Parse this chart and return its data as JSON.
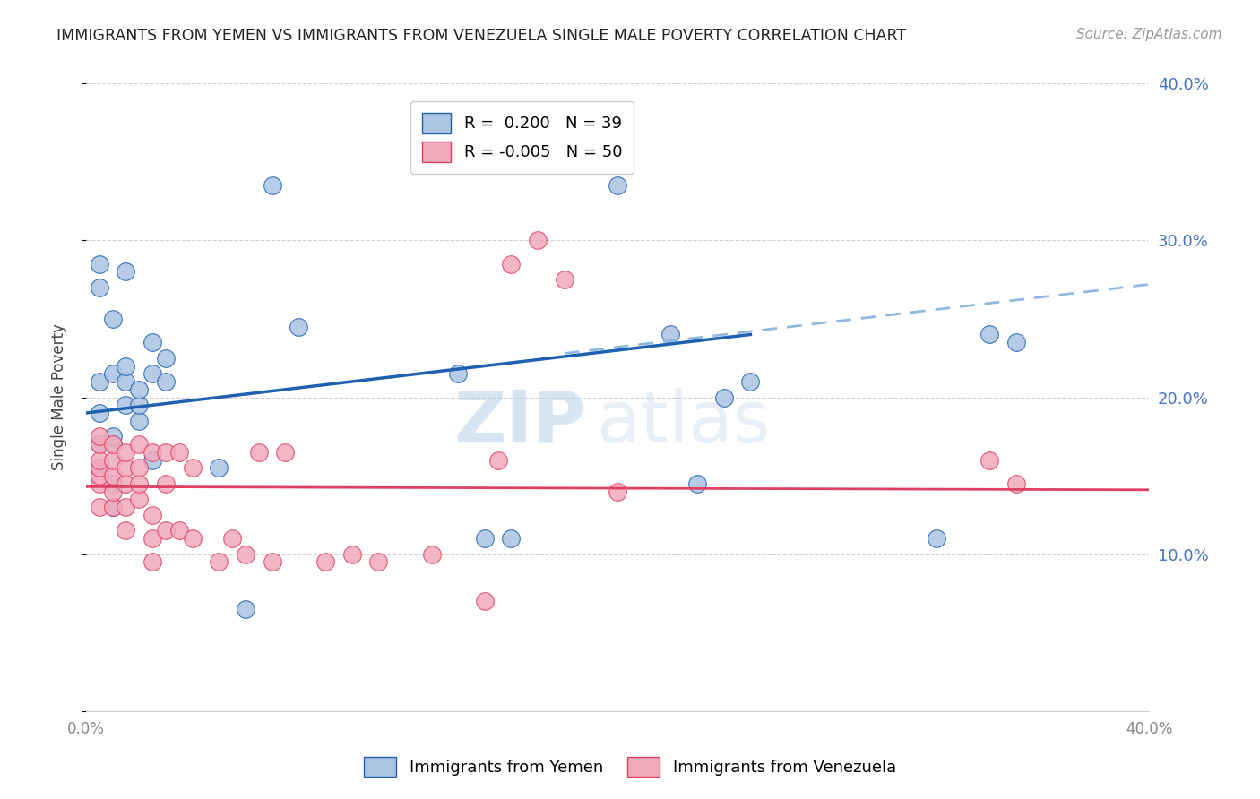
{
  "title": "IMMIGRANTS FROM YEMEN VS IMMIGRANTS FROM VENEZUELA SINGLE MALE POVERTY CORRELATION CHART",
  "source": "Source: ZipAtlas.com",
  "ylabel": "Single Male Poverty",
  "xlim": [
    0.0,
    0.4
  ],
  "ylim": [
    0.0,
    0.4
  ],
  "yticks": [
    0.0,
    0.1,
    0.2,
    0.3,
    0.4
  ],
  "ytick_labels": [
    "",
    "10.0%",
    "20.0%",
    "30.0%",
    "40.0%"
  ],
  "legend_r_yemen": "R =  0.200",
  "legend_n_yemen": "N = 39",
  "legend_r_venezuela": "R = -0.005",
  "legend_n_venezuela": "N = 50",
  "yemen_color": "#aac4e2",
  "venezuela_color": "#f2aabe",
  "yemen_line_color": "#2060b0",
  "venezuela_line_color": "#e04060",
  "dashed_line_color": "#90b8e0",
  "watermark_zip": "ZIP",
  "watermark_atlas": "atlas",
  "background_color": "#ffffff",
  "grid_color": "#d0d0d0",
  "yemen_x": [
    0.005,
    0.005,
    0.005,
    0.005,
    0.005,
    0.005,
    0.01,
    0.01,
    0.01,
    0.01,
    0.01,
    0.01,
    0.015,
    0.015,
    0.015,
    0.015,
    0.02,
    0.02,
    0.02,
    0.025,
    0.025,
    0.025,
    0.03,
    0.03,
    0.05,
    0.06,
    0.07,
    0.08,
    0.14,
    0.15,
    0.16,
    0.2,
    0.22,
    0.23,
    0.24,
    0.25,
    0.32,
    0.34,
    0.35
  ],
  "yemen_y": [
    0.155,
    0.17,
    0.19,
    0.21,
    0.27,
    0.285,
    0.13,
    0.145,
    0.17,
    0.175,
    0.215,
    0.25,
    0.195,
    0.21,
    0.22,
    0.28,
    0.185,
    0.195,
    0.205,
    0.16,
    0.215,
    0.235,
    0.21,
    0.225,
    0.155,
    0.065,
    0.335,
    0.245,
    0.215,
    0.11,
    0.11,
    0.335,
    0.24,
    0.145,
    0.2,
    0.21,
    0.11,
    0.24,
    0.235
  ],
  "venezuela_x": [
    0.005,
    0.005,
    0.005,
    0.005,
    0.005,
    0.005,
    0.005,
    0.01,
    0.01,
    0.01,
    0.01,
    0.01,
    0.015,
    0.015,
    0.015,
    0.015,
    0.015,
    0.02,
    0.02,
    0.02,
    0.02,
    0.025,
    0.025,
    0.025,
    0.025,
    0.03,
    0.03,
    0.03,
    0.035,
    0.035,
    0.04,
    0.04,
    0.05,
    0.055,
    0.06,
    0.065,
    0.07,
    0.075,
    0.09,
    0.1,
    0.11,
    0.13,
    0.15,
    0.155,
    0.16,
    0.17,
    0.18,
    0.2,
    0.34,
    0.35
  ],
  "venezuela_y": [
    0.13,
    0.145,
    0.15,
    0.155,
    0.16,
    0.17,
    0.175,
    0.13,
    0.14,
    0.15,
    0.16,
    0.17,
    0.115,
    0.13,
    0.145,
    0.155,
    0.165,
    0.135,
    0.145,
    0.155,
    0.17,
    0.095,
    0.11,
    0.125,
    0.165,
    0.115,
    0.145,
    0.165,
    0.115,
    0.165,
    0.11,
    0.155,
    0.095,
    0.11,
    0.1,
    0.165,
    0.095,
    0.165,
    0.095,
    0.1,
    0.095,
    0.1,
    0.07,
    0.16,
    0.285,
    0.3,
    0.275,
    0.14,
    0.16,
    0.145
  ],
  "blue_line_x0": 0.0,
  "blue_line_y0": 0.19,
  "blue_line_x1": 0.25,
  "blue_line_y1": 0.24,
  "dash_line_x0": 0.18,
  "dash_line_y0": 0.228,
  "dash_line_x1": 0.4,
  "dash_line_y1": 0.272,
  "pink_line_x0": 0.0,
  "pink_line_y0": 0.143,
  "pink_line_x1": 0.4,
  "pink_line_y1": 0.141
}
